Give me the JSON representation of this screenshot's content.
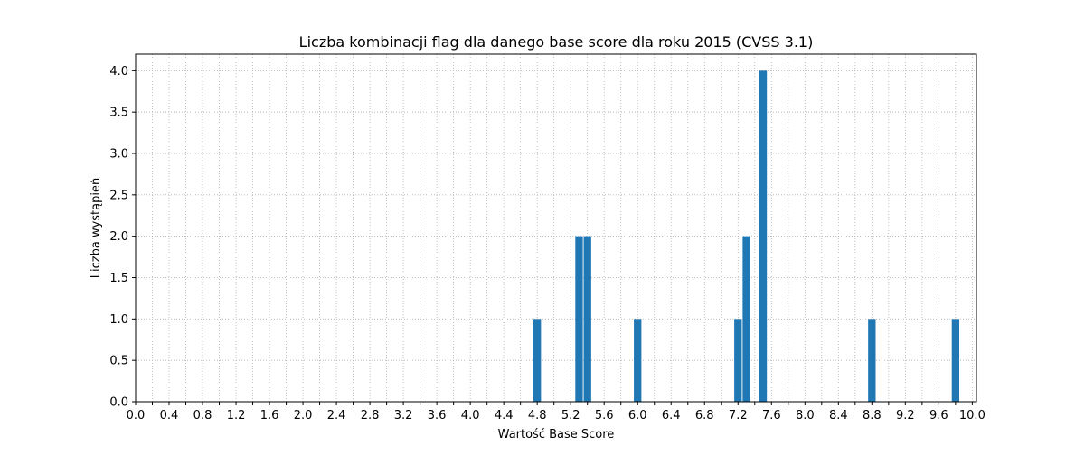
{
  "chart_data": {
    "type": "bar",
    "title": "Liczba kombinacji flag dla danego base score dla roku 2015 (CVSS 3.1)",
    "xlabel": "Wartość Base Score",
    "ylabel": "Liczba wystąpień",
    "x": [
      4.8,
      5.3,
      5.4,
      6.0,
      7.2,
      7.3,
      7.5,
      8.8,
      9.8
    ],
    "values": [
      1,
      2,
      2,
      1,
      1,
      2,
      4,
      1,
      1
    ],
    "xlim": [
      0.0,
      10.05
    ],
    "ylim": [
      0.0,
      4.2
    ],
    "bar_width": 0.09,
    "xticks": [
      0.0,
      0.2,
      0.4,
      0.6,
      0.8,
      1.0,
      1.2,
      1.4,
      1.6,
      1.8,
      2.0,
      2.2,
      2.4,
      2.6,
      2.8,
      3.0,
      3.2,
      3.4,
      3.6,
      3.8,
      4.0,
      4.2,
      4.4,
      4.6,
      4.8,
      5.0,
      5.2,
      5.4,
      5.6,
      5.8,
      6.0,
      6.2,
      6.4,
      6.6,
      6.8,
      7.0,
      7.2,
      7.4,
      7.6,
      7.8,
      8.0,
      8.2,
      8.4,
      8.6,
      8.8,
      9.0,
      9.2,
      9.4,
      9.6,
      9.8,
      10.0
    ],
    "xtick_labels": [
      "0.0",
      "0.4",
      "0.8",
      "1.2",
      "1.6",
      "2.0",
      "2.4",
      "2.8",
      "3.2",
      "3.6",
      "4.0",
      "4.4",
      "4.8",
      "5.2",
      "5.6",
      "6.0",
      "6.4",
      "6.8",
      "7.2",
      "7.6",
      "8.0",
      "8.4",
      "8.8",
      "9.2",
      "9.6",
      "10.0"
    ],
    "yticks": [
      0.0,
      0.5,
      1.0,
      1.5,
      2.0,
      2.5,
      3.0,
      3.5,
      4.0
    ],
    "ytick_labels": [
      "0.0",
      "0.5",
      "1.0",
      "1.5",
      "2.0",
      "2.5",
      "3.0",
      "3.5",
      "4.0"
    ],
    "grid": true,
    "colors": {
      "bar": "#1f77b4",
      "grid": "#b0b0b0",
      "axis": "#000000"
    }
  }
}
